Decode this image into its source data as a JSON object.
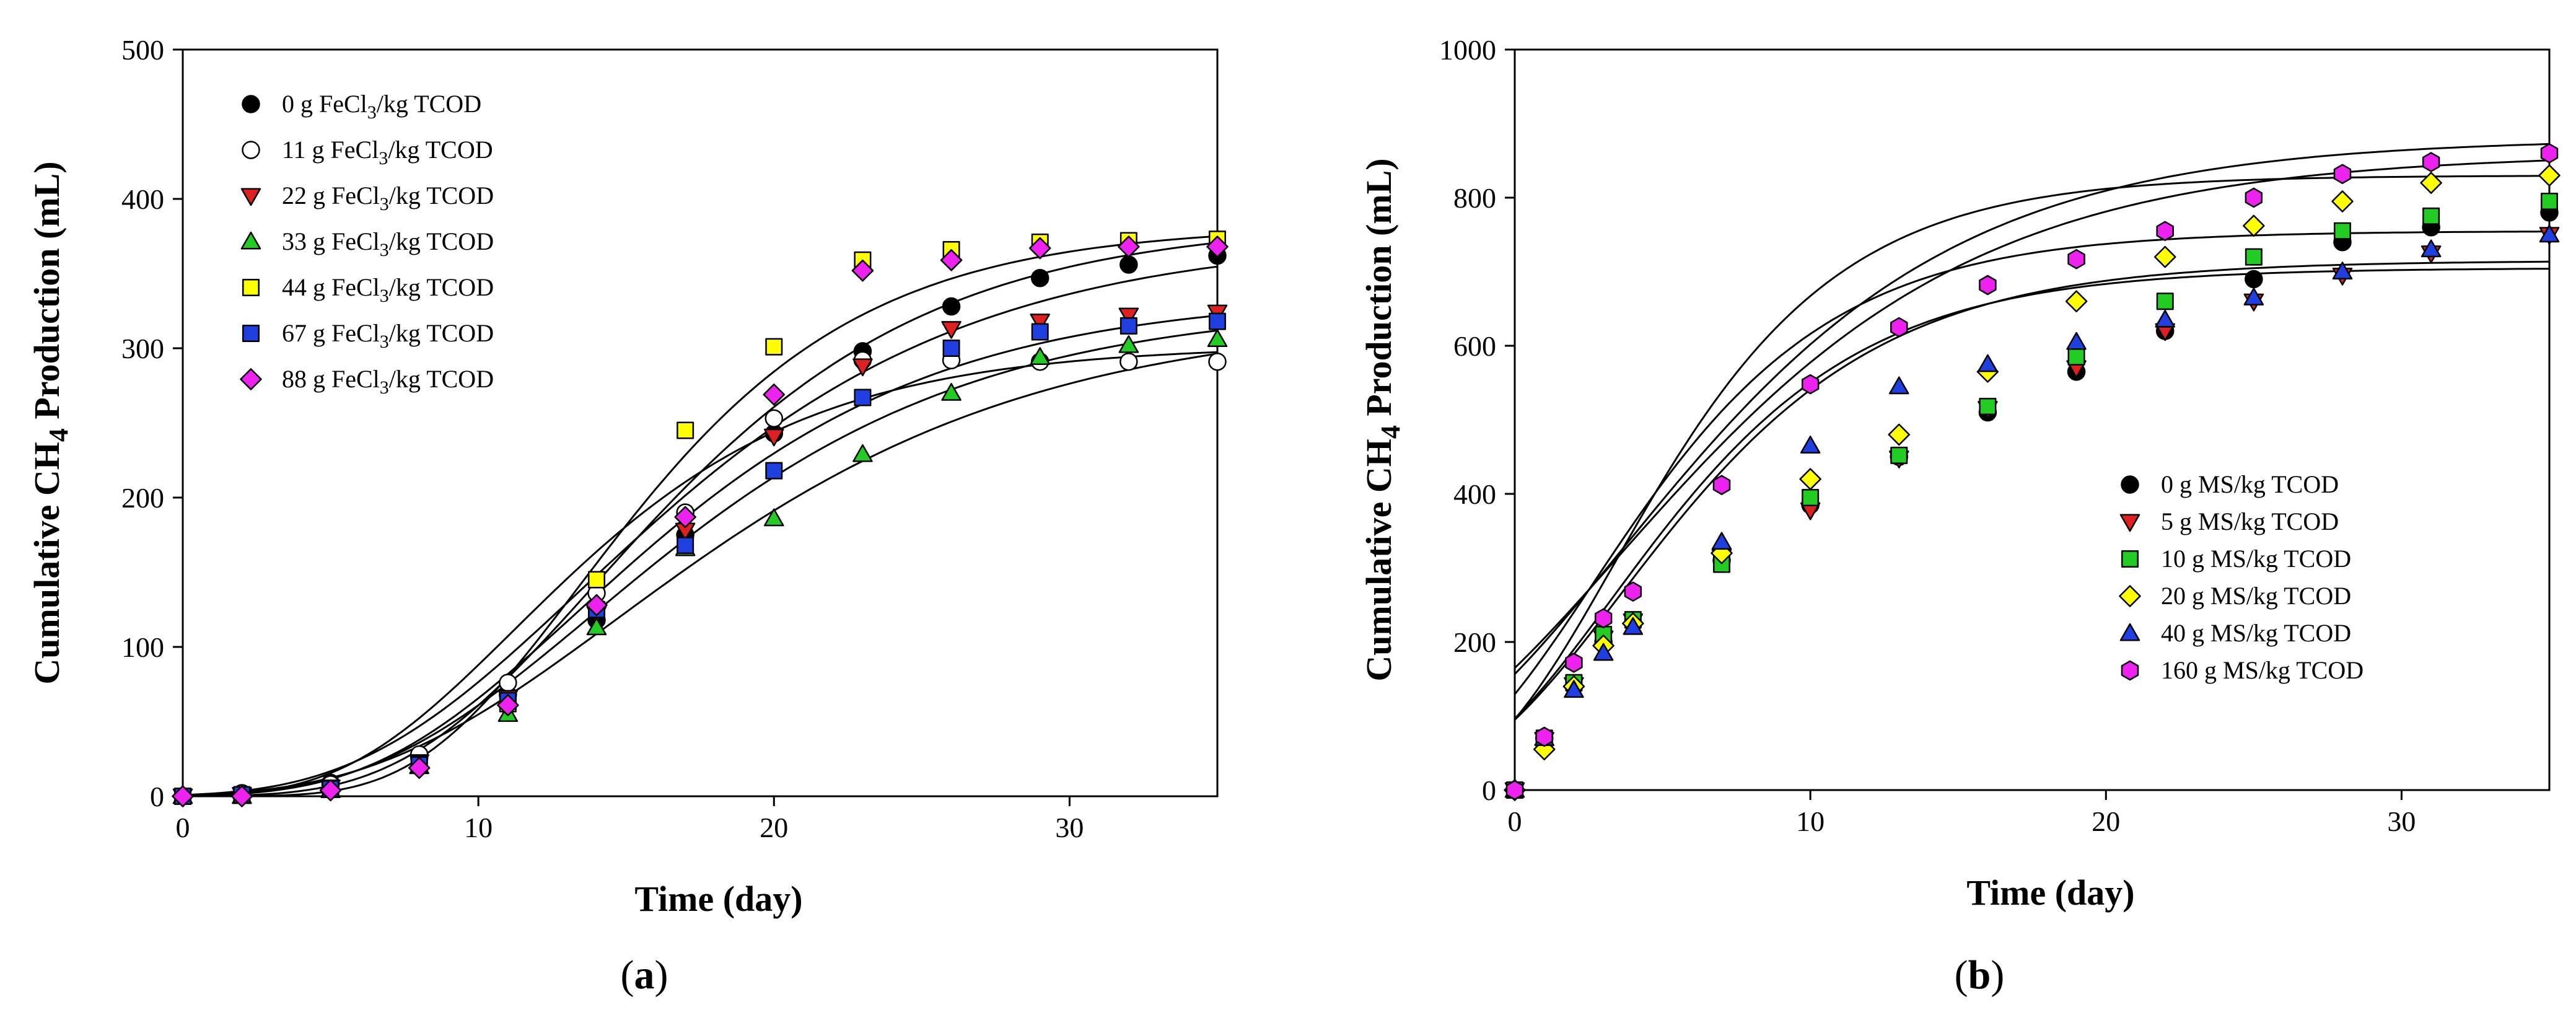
{
  "chart_data": [
    {
      "id": "a",
      "type": "scatter",
      "panel_label": "a",
      "xlabel": "Time (day)",
      "ylabel_parts": [
        "Cumulative CH",
        "4",
        " Production (mL)"
      ],
      "xlim": [
        0,
        35
      ],
      "ylim": [
        0,
        500
      ],
      "xticks": [
        0,
        10,
        20,
        30
      ],
      "yticks": [
        0,
        100,
        200,
        300,
        400,
        500
      ],
      "legend_position": "top-left",
      "x": [
        0,
        2,
        5,
        8,
        11,
        14,
        17,
        20,
        23,
        26,
        29,
        32,
        35
      ],
      "series": [
        {
          "dose": "0",
          "unit": " g FeCl",
          "sub": "3",
          "rest": "/kg TCOD",
          "marker": "circle",
          "color": "#000000",
          "values": [
            0,
            2,
            9,
            26,
            68,
            118,
            175,
            243,
            298,
            328,
            347,
            356,
            362
          ],
          "fit": {
            "P": 375,
            "Rm": 18.5,
            "lambda": 6.0
          }
        },
        {
          "dose": "11",
          "unit": " g FeCl",
          "sub": "3",
          "rest": "/kg TCOD",
          "marker": "circle",
          "color": "#ffffff",
          "values": [
            0,
            2,
            8,
            28,
            76,
            136,
            190,
            253,
            292,
            292,
            291,
            291,
            291
          ],
          "fit": {
            "P": 302,
            "Rm": 19.5,
            "lambda": 5.5
          }
        },
        {
          "dose": "22",
          "unit": " g FeCl",
          "sub": "3",
          "rest": "/kg TCOD",
          "marker": "triangle-down",
          "color": "#e02020",
          "values": [
            0,
            1,
            6,
            23,
            66,
            122,
            178,
            241,
            288,
            313,
            318,
            322,
            324
          ],
          "fit": {
            "P": 336,
            "Rm": 18.0,
            "lambda": 6.5
          }
        },
        {
          "dose": "33",
          "unit": " g FeCl",
          "sub": "3",
          "rest": "/kg TCOD",
          "marker": "triangle-up",
          "color": "#22cc22",
          "values": [
            0,
            0,
            4,
            20,
            55,
            113,
            166,
            186,
            229,
            270,
            294,
            302,
            306
          ],
          "fit": {
            "P": 322,
            "Rm": 14.5,
            "lambda": 6.5
          }
        },
        {
          "dose": "44",
          "unit": " g FeCl",
          "sub": "3",
          "rest": "/kg TCOD",
          "marker": "square",
          "color": "#ffff00",
          "values": [
            0,
            1,
            5,
            22,
            62,
            145,
            245,
            301,
            359,
            366,
            371,
            372,
            373
          ],
          "fit": {
            "P": 382,
            "Rm": 26.0,
            "lambda": 8.0
          }
        },
        {
          "dose": "67",
          "unit": " g FeCl",
          "sub": "3",
          "rest": "/kg TCOD",
          "marker": "square",
          "color": "#1f3fe0",
          "values": [
            0,
            1,
            5,
            21,
            64,
            125,
            168,
            218,
            267,
            300,
            311,
            315,
            318
          ],
          "fit": {
            "P": 330,
            "Rm": 16.5,
            "lambda": 6.5
          }
        },
        {
          "dose": "88",
          "unit": " g FeCl",
          "sub": "3",
          "rest": "/kg TCOD",
          "marker": "diamond",
          "color": "#ee22ee",
          "values": [
            0,
            0,
            4,
            19,
            61,
            128,
            187,
            269,
            352,
            359,
            367,
            368,
            368
          ],
          "fit": {
            "P": 385,
            "Rm": 22.0,
            "lambda": 7.5
          }
        }
      ]
    },
    {
      "id": "b",
      "type": "scatter",
      "panel_label": "b",
      "xlabel": "Time (day)",
      "ylabel_parts": [
        "Cumulative CH",
        "4",
        " Production (mL)"
      ],
      "xlim": [
        0,
        35
      ],
      "ylim": [
        0,
        1000
      ],
      "xticks": [
        0,
        10,
        20,
        30
      ],
      "yticks": [
        0,
        200,
        400,
        600,
        800,
        1000
      ],
      "legend_position": "bottom-right",
      "x": [
        0,
        1,
        2,
        3,
        4,
        7,
        10,
        13,
        16,
        19,
        22,
        25,
        28,
        31,
        35
      ],
      "series": [
        {
          "label": "0 g MS/kg TCOD",
          "marker": "circle",
          "color": "#000000",
          "values": [
            0,
            70,
            140,
            200,
            225,
            310,
            385,
            450,
            510,
            565,
            620,
            690,
            740,
            760,
            780
          ],
          "fit": {
            "P": 715,
            "Rm": 52,
            "lambda": -1.5
          }
        },
        {
          "label": "5 g MS/kg TCOD",
          "marker": "triangle-down",
          "color": "#e02020",
          "values": [
            0,
            68,
            142,
            205,
            228,
            315,
            378,
            448,
            515,
            570,
            620,
            660,
            695,
            725,
            750
          ],
          "fit": {
            "P": 705,
            "Rm": 54,
            "lambda": -1.5
          }
        },
        {
          "label": "10 g MS/kg TCOD",
          "marker": "square",
          "color": "#22cc22",
          "values": [
            0,
            70,
            145,
            210,
            230,
            305,
            395,
            452,
            518,
            585,
            660,
            720,
            755,
            775,
            795
          ],
          "fit": {
            "P": 860,
            "Rm": 45,
            "lambda": -3.5
          }
        },
        {
          "label": "20 g MS/kg TCOD",
          "marker": "diamond",
          "color": "#ffff00",
          "values": [
            0,
            55,
            140,
            195,
            225,
            320,
            420,
            480,
            565,
            660,
            720,
            762,
            795,
            820,
            830
          ],
          "fit": {
            "P": 880,
            "Rm": 49,
            "lambda": -3.0
          }
        },
        {
          "label": "40 g MS/kg TCOD",
          "marker": "triangle-up",
          "color": "#1f3fe0",
          "values": [
            0,
            70,
            135,
            185,
            220,
            335,
            465,
            545,
            575,
            605,
            635,
            665,
            700,
            730,
            750
          ],
          "fit": {
            "P": 755,
            "Rm": 60,
            "lambda": -2.0
          }
        },
        {
          "label": "160 g MS/kg TCOD",
          "marker": "hexagon",
          "color": "#ee22ee",
          "values": [
            0,
            72,
            172,
            232,
            268,
            412,
            548,
            625,
            682,
            717,
            755,
            800,
            832,
            848,
            860
          ],
          "fit": {
            "P": 830,
            "Rm": 70,
            "lambda": -1.0
          }
        }
      ]
    }
  ]
}
